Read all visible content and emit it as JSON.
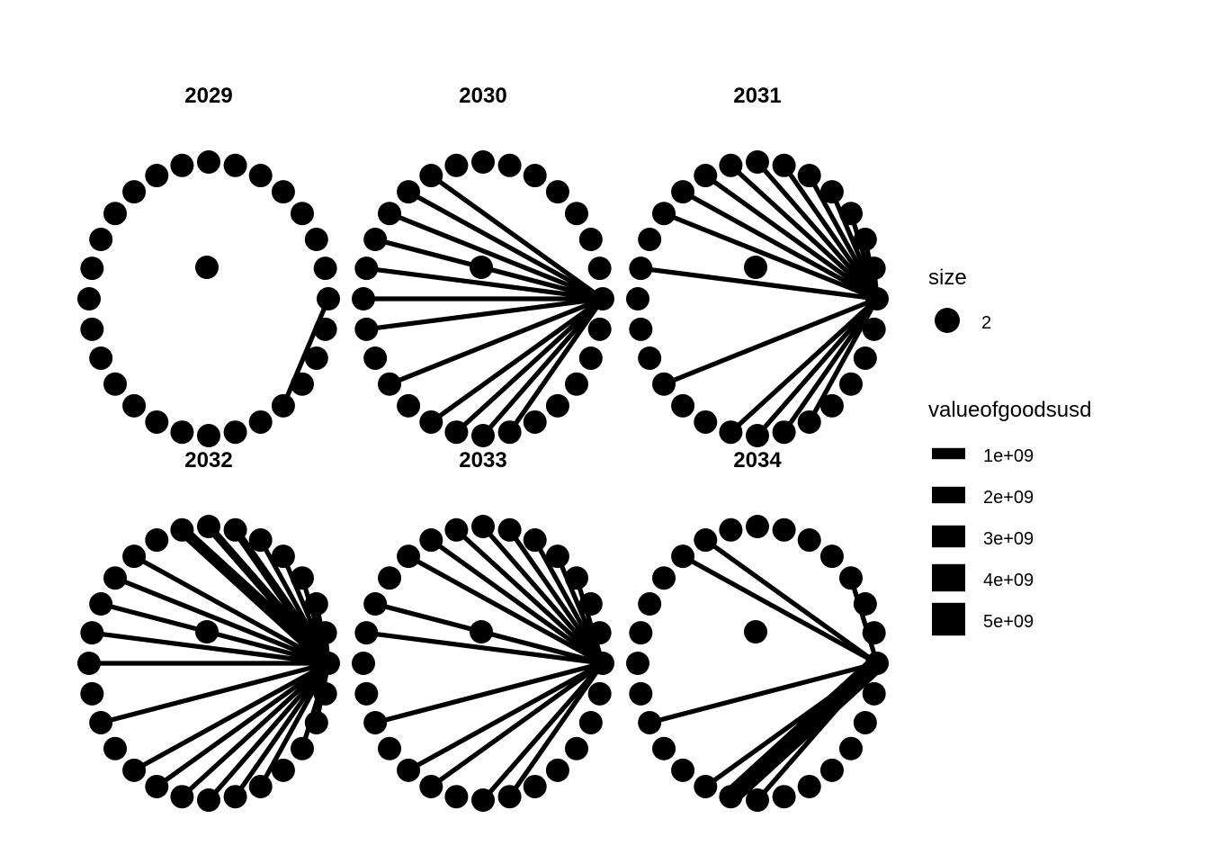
{
  "panels": [
    {
      "title": "2029",
      "center_node_index": 24,
      "edges": [
        {
          "to": 0,
          "value": 1000000000.0
        }
      ]
    },
    {
      "title": "2030",
      "center_node_index": 0,
      "edges": [
        {
          "to": 22,
          "value": 1000000000.0
        },
        {
          "to": 21,
          "value": 1000000000.0
        },
        {
          "to": 20,
          "value": 1000000000.0
        },
        {
          "to": 19,
          "value": 1000000000.0
        },
        {
          "to": 17,
          "value": 1000000000.0
        },
        {
          "to": 15,
          "value": 1000000000.0
        },
        {
          "to": 14,
          "value": 1000000000.0
        },
        {
          "to": 13,
          "value": 1000000000.0
        },
        {
          "to": 12,
          "value": 1000000000.0
        },
        {
          "to": 11,
          "value": 1000000000.0
        },
        {
          "to": 10,
          "value": 1000000000.0
        },
        {
          "to": 9,
          "value": 1000000000.0
        }
      ]
    },
    {
      "title": "2031",
      "center_node_index": 0,
      "edges": [
        {
          "to": 23,
          "value": 1000000000.0
        },
        {
          "to": 22,
          "value": 1000000000.0
        },
        {
          "to": 21,
          "value": 1000000000.0
        },
        {
          "to": 20,
          "value": 1000000000.0
        },
        {
          "to": 17,
          "value": 1000000000.0
        },
        {
          "to": 13,
          "value": 1000000000.0
        },
        {
          "to": 11,
          "value": 1000000000.0
        },
        {
          "to": 10,
          "value": 1000000000.0
        },
        {
          "to": 9,
          "value": 1000000000.0
        },
        {
          "to": 8,
          "value": 1000000000.0
        },
        {
          "to": 7,
          "value": 1000000000.0
        },
        {
          "to": 6,
          "value": 1000000000.0
        },
        {
          "to": 5,
          "value": 1000000000.0
        },
        {
          "to": 4,
          "value": 1000000000.0
        },
        {
          "to": 3,
          "value": 1000000000.0
        },
        {
          "to": 2,
          "value": 1000000000.0
        },
        {
          "to": 1,
          "value": 1000000000.0
        }
      ]
    },
    {
      "title": "2032",
      "center_node_index": 0,
      "edges": [
        {
          "to": 26,
          "value": 1000000000.0
        },
        {
          "to": 25,
          "value": 1000000000.0
        },
        {
          "to": 23,
          "value": 1000000000.0
        },
        {
          "to": 22,
          "value": 1000000000.0
        },
        {
          "to": 21,
          "value": 1000000000.0
        },
        {
          "to": 20,
          "value": 1000000000.0
        },
        {
          "to": 19,
          "value": 1000000000.0
        },
        {
          "to": 18,
          "value": 1000000000.0
        },
        {
          "to": 16,
          "value": 1000000000.0
        },
        {
          "to": 14,
          "value": 1000000000.0
        },
        {
          "to": 13,
          "value": 1000000000.0
        },
        {
          "to": 12,
          "value": 1000000000.0
        },
        {
          "to": 11,
          "value": 1000000000.0
        },
        {
          "to": 10,
          "value": 1000000000.0
        },
        {
          "to": 8,
          "value": 3000000000.0
        },
        {
          "to": 7,
          "value": 2000000000.0
        },
        {
          "to": 6,
          "value": 2000000000.0
        },
        {
          "to": 5,
          "value": 1000000000.0
        },
        {
          "to": 4,
          "value": 1000000000.0
        },
        {
          "to": 3,
          "value": 1000000000.0
        },
        {
          "to": 2,
          "value": 1000000000.0
        },
        {
          "to": 1,
          "value": 1000000000.0
        }
      ]
    },
    {
      "title": "2033",
      "center_node_index": 0,
      "edges": [
        {
          "to": 22,
          "value": 1000000000.0
        },
        {
          "to": 21,
          "value": 1000000000.0
        },
        {
          "to": 19,
          "value": 1000000000.0
        },
        {
          "to": 18,
          "value": 1000000000.0
        },
        {
          "to": 16,
          "value": 1000000000.0
        },
        {
          "to": 13,
          "value": 1000000000.0
        },
        {
          "to": 12,
          "value": 1000000000.0
        },
        {
          "to": 10,
          "value": 1000000000.0
        },
        {
          "to": 9,
          "value": 1000000000.0
        },
        {
          "to": 8,
          "value": 1000000000.0
        },
        {
          "to": 7,
          "value": 1000000000.0
        },
        {
          "to": 6,
          "value": 1000000000.0
        },
        {
          "to": 5,
          "value": 1000000000.0
        },
        {
          "to": 4,
          "value": 1000000000.0
        },
        {
          "to": 3,
          "value": 1000000000.0
        }
      ]
    },
    {
      "title": "2034",
      "center_node_index": 0,
      "edges": [
        {
          "to": 20,
          "value": 5000000000.0
        },
        {
          "to": 21,
          "value": 1000000000.0
        },
        {
          "to": 19,
          "value": 1000000000.0
        },
        {
          "to": 16,
          "value": 1000000000.0
        },
        {
          "to": 3,
          "value": 1000000000.0
        },
        {
          "to": 10,
          "value": 1000000000.0
        },
        {
          "to": 9,
          "value": 1000000000.0
        }
      ]
    }
  ],
  "legend": {
    "size": {
      "title": "size",
      "entries": [
        "2"
      ]
    },
    "valueofgoodsusd": {
      "title": "valueofgoodsusd",
      "entries": [
        "1e+09",
        "2e+09",
        "3e+09",
        "4e+09",
        "5e+09"
      ],
      "values": [
        1000000000.0,
        2000000000.0,
        3000000000.0,
        4000000000.0,
        5000000000.0
      ]
    }
  },
  "colors": {
    "node": "#000000",
    "edge": "#000000",
    "background": "#ffffff"
  }
}
